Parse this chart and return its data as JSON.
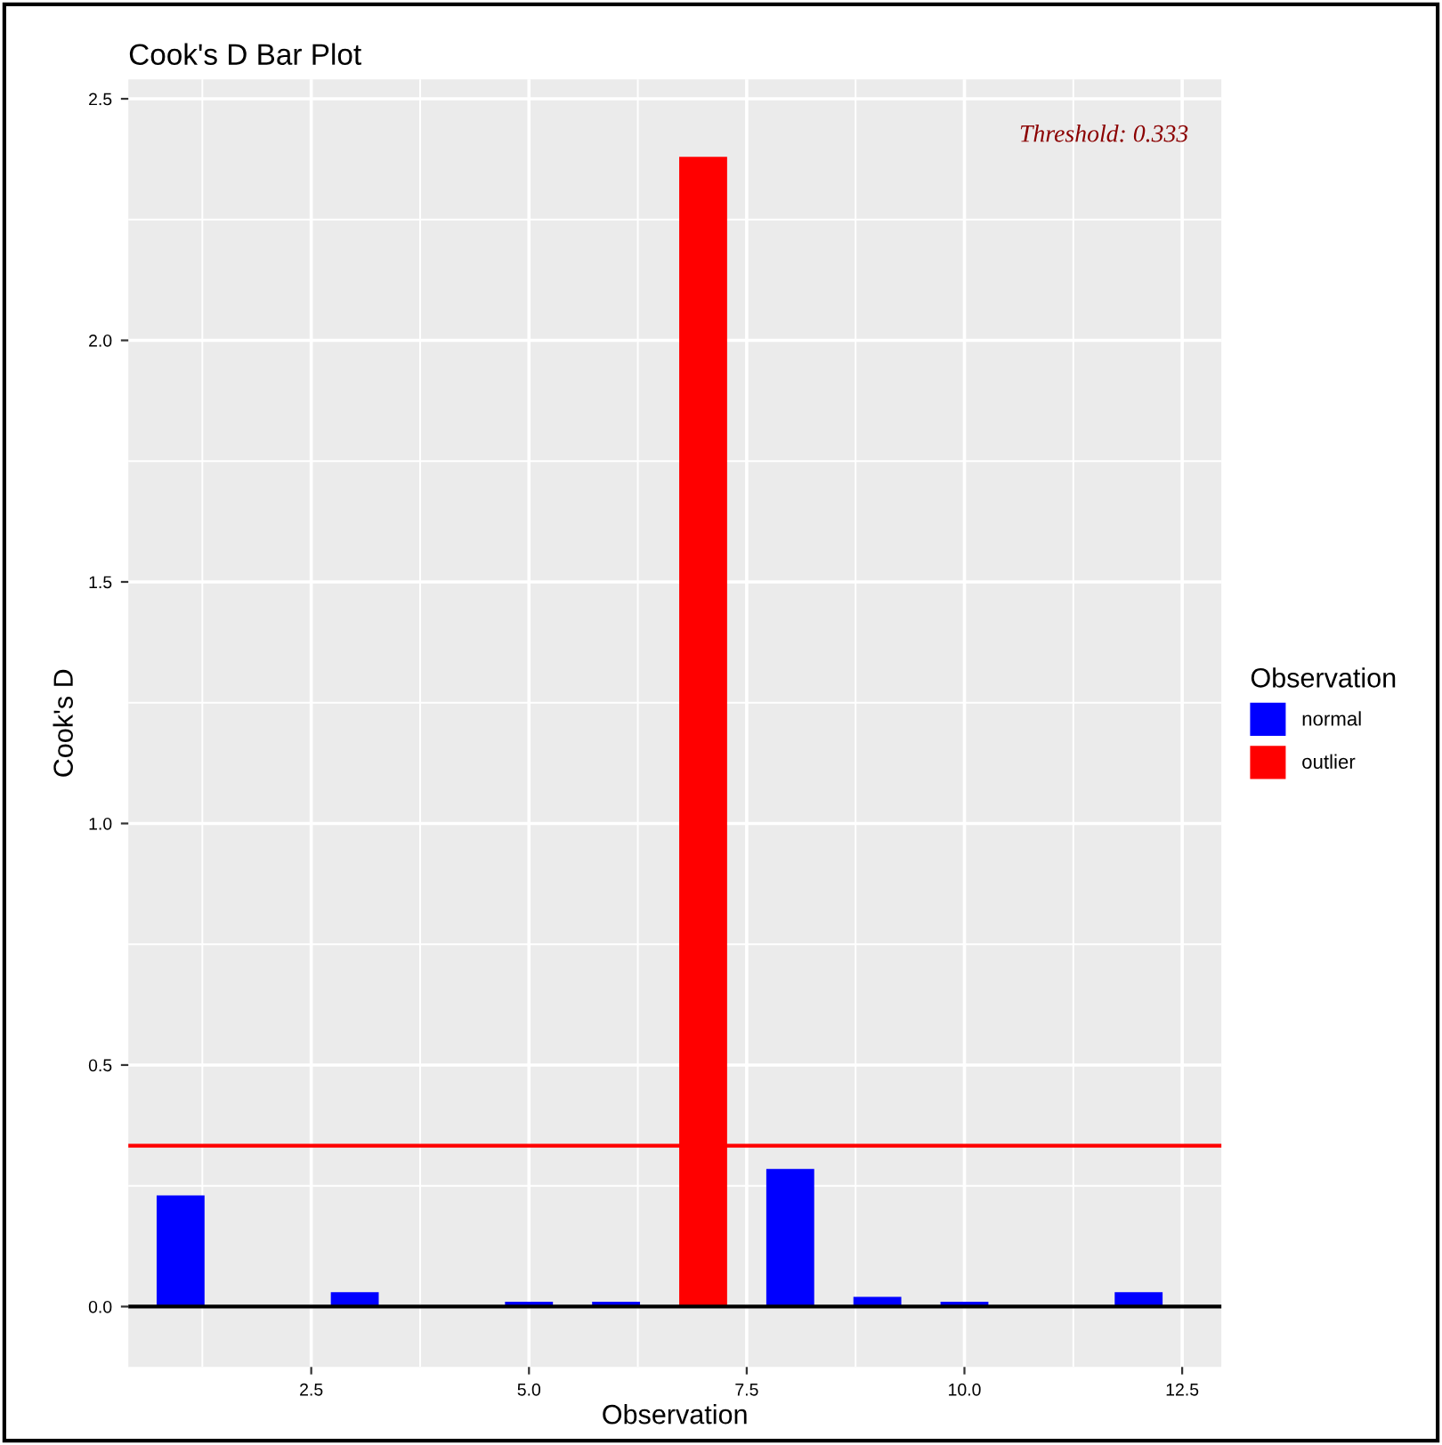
{
  "chart_data": {
    "type": "bar",
    "title": "Cook's D Bar Plot",
    "xlabel": "Observation",
    "ylabel": "Cook's D",
    "legend_title": "Observation",
    "x": [
      1,
      2,
      3,
      4,
      5,
      6,
      7,
      8,
      9,
      10,
      11,
      12
    ],
    "series": [
      {
        "name": "normal",
        "color": "#0000ff",
        "values": [
          0.23,
          0,
          0.03,
          0,
          0.01,
          0.01,
          null,
          0.285,
          0.02,
          0.01,
          0,
          0.03
        ]
      },
      {
        "name": "outlier",
        "color": "#ff0000",
        "values": [
          null,
          null,
          null,
          null,
          null,
          null,
          2.38,
          null,
          null,
          null,
          null,
          null
        ]
      }
    ],
    "xlim": [
      0.4,
      12.95
    ],
    "xticks": [
      2.5,
      {
        "value": 5,
        "label": "5.0"
      },
      7.5,
      {
        "value": 10,
        "label": "10.0"
      },
      12.5
    ],
    "ylim": [
      -0.125,
      2.54
    ],
    "yticks": [
      {
        "value": 0,
        "label": "0.0"
      },
      0.5,
      {
        "value": 1,
        "label": "1.0"
      },
      1.5,
      {
        "value": 2,
        "label": "2.0"
      },
      2.5
    ],
    "ref_lines": [
      {
        "axis": "y",
        "value": 0.333,
        "label": null,
        "color": "#ff0000"
      },
      {
        "axis": "y",
        "value": 0,
        "label": null,
        "color": "#000000"
      }
    ],
    "annotations": [
      "Threshold: 0.333"
    ],
    "grid": true,
    "legend": "right"
  }
}
